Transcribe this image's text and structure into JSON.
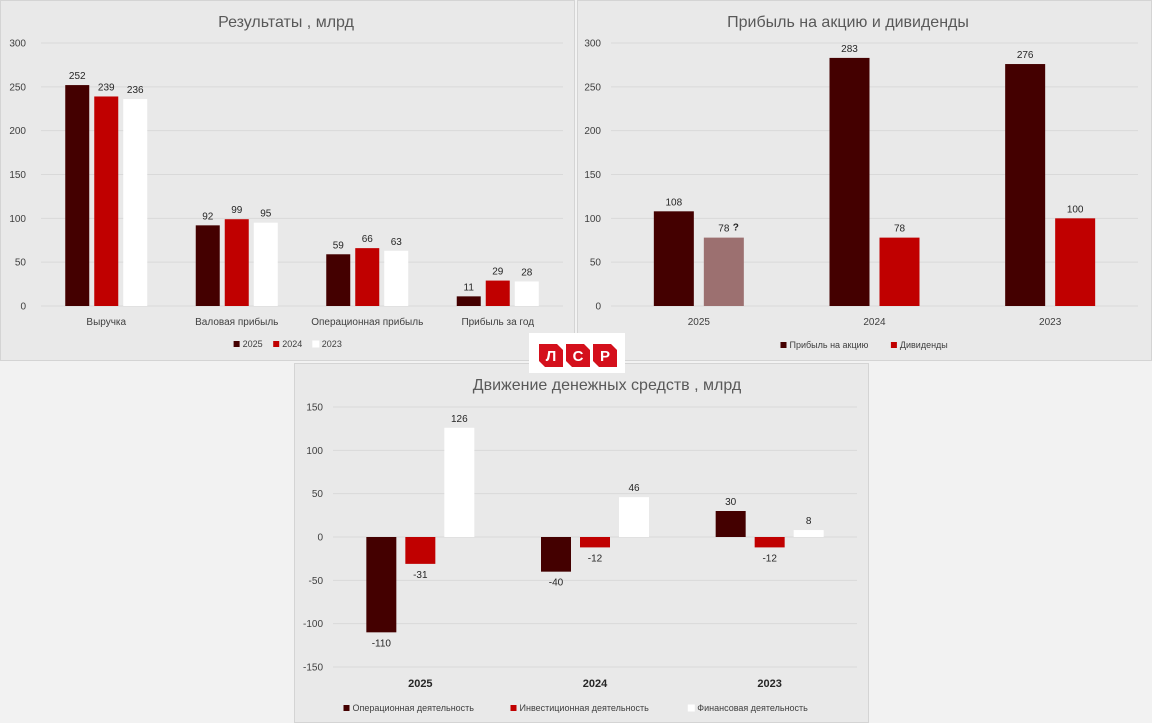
{
  "logo": {
    "letters": [
      "Л",
      "С",
      "Р"
    ],
    "color": "#d4101c"
  },
  "chart_data": [
    {
      "type": "bar",
      "title": "Результаты , млрд",
      "categories": [
        "Выручка",
        "Валовая прибыль",
        "Операционная прибыль",
        "Прибыль за год"
      ],
      "ylim": [
        0,
        300
      ],
      "yticks": [
        0,
        50,
        100,
        150,
        200,
        250,
        300
      ],
      "grid": true,
      "legend_position": "bottom",
      "series": [
        {
          "name": "2025",
          "color": "#440000",
          "values": [
            252,
            92,
            59,
            11
          ]
        },
        {
          "name": "2024",
          "color": "#c00000",
          "values": [
            239,
            99,
            66,
            29
          ]
        },
        {
          "name": "2023",
          "color": "#ffffff",
          "values": [
            236,
            95,
            63,
            28
          ]
        }
      ]
    },
    {
      "type": "bar",
      "title": "Прибыль на акцию и  дивиденды",
      "categories": [
        "2025",
        "2024",
        "2023"
      ],
      "ylim": [
        0,
        300
      ],
      "yticks": [
        0,
        50,
        100,
        150,
        200,
        250,
        300
      ],
      "grid": true,
      "legend_position": "bottom",
      "series": [
        {
          "name": "Прибыль на акцию",
          "color": "#440000",
          "values": [
            108,
            283,
            276
          ]
        },
        {
          "name": "Дивиденды",
          "color": "#c00000",
          "values": [
            78,
            78,
            100
          ],
          "estimated_color": "#9c7070",
          "estimated_flags": [
            true,
            false,
            false
          ]
        }
      ],
      "annotations": [
        {
          "category": "2025",
          "series": "Дивиденды",
          "text": "?"
        }
      ]
    },
    {
      "type": "bar",
      "title": "Движение денежных средств , млрд",
      "categories": [
        "2025",
        "2024",
        "2023"
      ],
      "ylim": [
        -150,
        150
      ],
      "yticks": [
        -150,
        -100,
        -50,
        0,
        50,
        100,
        150
      ],
      "grid": true,
      "legend_position": "bottom",
      "series": [
        {
          "name": "Операционная деятельность",
          "color": "#440000",
          "values": [
            -110,
            -40,
            30
          ]
        },
        {
          "name": "Инвестиционная деятельность",
          "color": "#c00000",
          "values": [
            -31,
            -12,
            -12
          ]
        },
        {
          "name": "Финансовая деятельность",
          "color": "#ffffff",
          "values": [
            126,
            46,
            8
          ]
        }
      ]
    }
  ]
}
